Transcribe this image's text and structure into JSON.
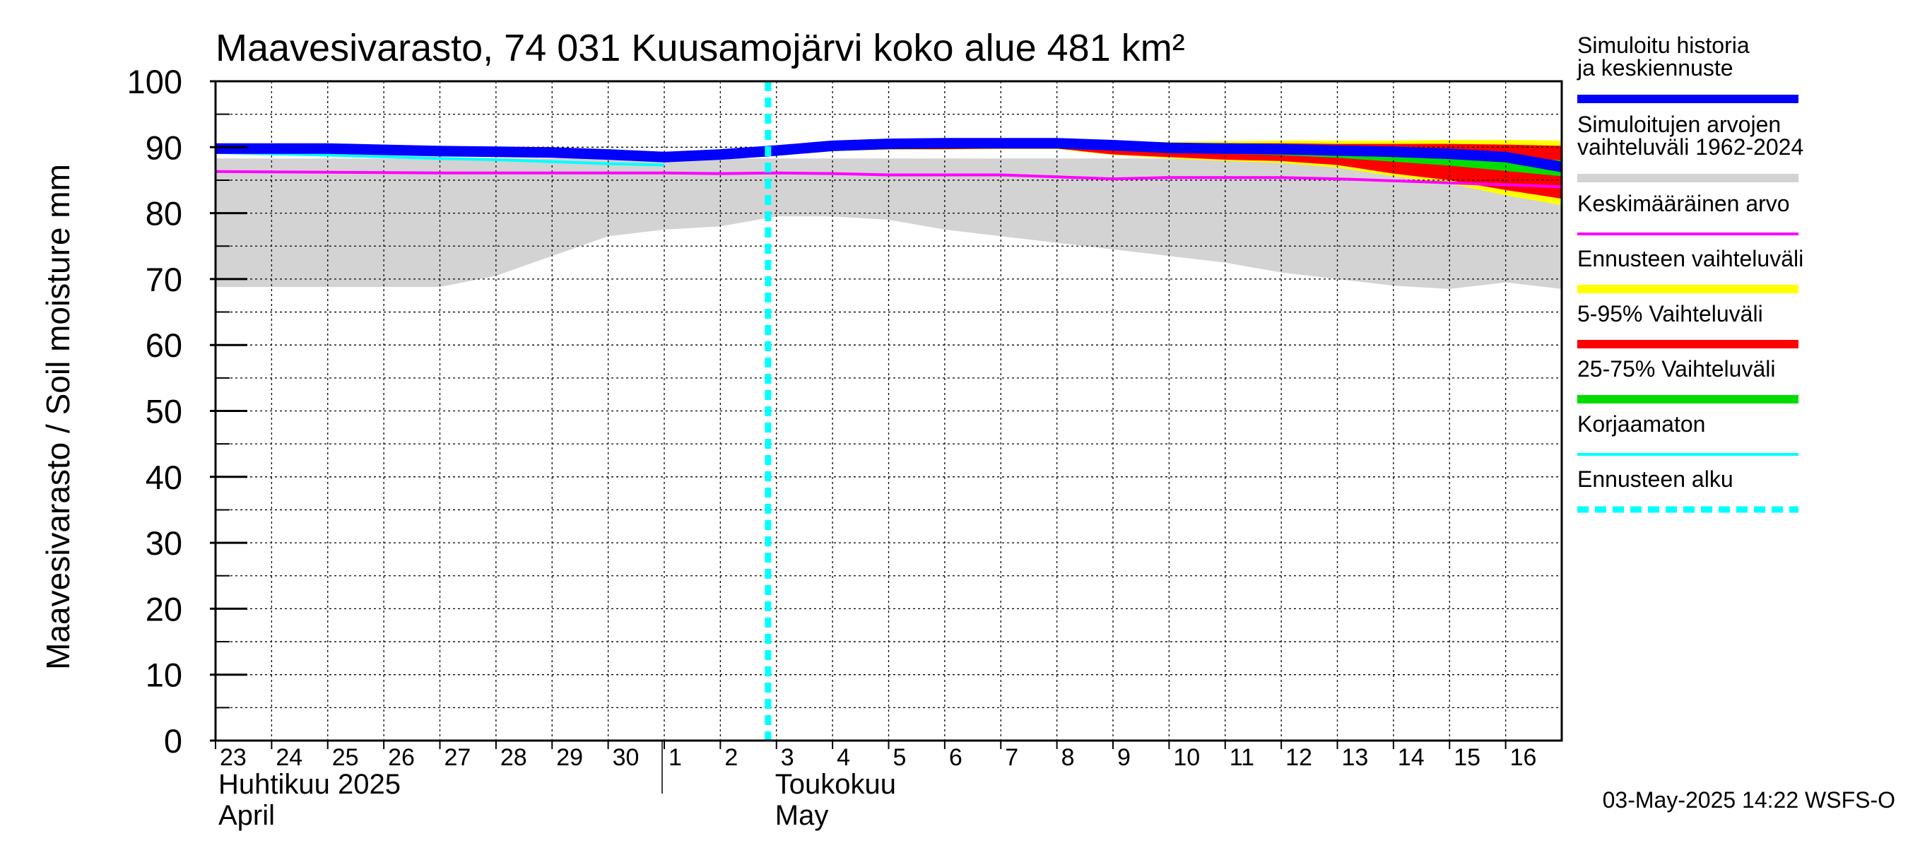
{
  "chart_data": {
    "type": "area",
    "title": "Maavesivarasto, 74 031 Kuusamojärvi koko alue 481 km²",
    "ylabel": "Maavesivarasto / Soil moisture   mm",
    "ylim": [
      0,
      100
    ],
    "yticks": [
      0,
      10,
      20,
      30,
      40,
      50,
      60,
      70,
      80,
      90,
      100
    ],
    "grid": true,
    "legend_position": "right",
    "x_start": "2025-04-23",
    "x_end": "2025-05-17",
    "forecast_start": "2025-05-03",
    "x_day_labels": [
      {
        "date": "2025-04-23",
        "label": "23"
      },
      {
        "date": "2025-04-24",
        "label": "24"
      },
      {
        "date": "2025-04-25",
        "label": "25"
      },
      {
        "date": "2025-04-26",
        "label": "26"
      },
      {
        "date": "2025-04-27",
        "label": "27"
      },
      {
        "date": "2025-04-28",
        "label": "28"
      },
      {
        "date": "2025-04-29",
        "label": "29"
      },
      {
        "date": "2025-04-30",
        "label": "30"
      },
      {
        "date": "2025-05-01",
        "label": "1"
      },
      {
        "date": "2025-05-02",
        "label": "2"
      },
      {
        "date": "2025-05-03",
        "label": "3"
      },
      {
        "date": "2025-05-04",
        "label": "4"
      },
      {
        "date": "2025-05-05",
        "label": "5"
      },
      {
        "date": "2025-05-06",
        "label": "6"
      },
      {
        "date": "2025-05-07",
        "label": "7"
      },
      {
        "date": "2025-05-08",
        "label": "8"
      },
      {
        "date": "2025-05-09",
        "label": "9"
      },
      {
        "date": "2025-05-10",
        "label": "10"
      },
      {
        "date": "2025-05-11",
        "label": "11"
      },
      {
        "date": "2025-05-12",
        "label": "12"
      },
      {
        "date": "2025-05-13",
        "label": "13"
      },
      {
        "date": "2025-05-14",
        "label": "14"
      },
      {
        "date": "2025-05-15",
        "label": "15"
      },
      {
        "date": "2025-05-16",
        "label": "16"
      }
    ],
    "months": [
      {
        "date": "2025-04-23",
        "fi": "Huhtikuu  2025",
        "en": "April"
      },
      {
        "date": "2025-05-01",
        "fi": "Toukokuu",
        "en": "May"
      }
    ],
    "month_separator": "2025-05-01",
    "x": [
      "2025-04-23",
      "2025-04-25",
      "2025-04-27",
      "2025-04-28",
      "2025-04-29",
      "2025-04-30",
      "2025-05-01",
      "2025-05-02",
      "2025-05-03",
      "2025-05-04",
      "2025-05-05",
      "2025-05-06",
      "2025-05-07",
      "2025-05-08",
      "2025-05-09",
      "2025-05-10",
      "2025-05-11",
      "2025-05-12",
      "2025-05-13",
      "2025-05-14",
      "2025-05-15",
      "2025-05-16",
      "2025-05-17"
    ],
    "bands": [
      {
        "name": "Simuloitujen arvojen vaihteluväli 1962-2024",
        "color": "#d3d3d3",
        "upper": [
          88.3,
          88.3,
          88.3,
          88.3,
          88.3,
          88.3,
          88.3,
          88.3,
          88.3,
          88.3,
          88.3,
          88.3,
          88.3,
          88.3,
          88.3,
          88.3,
          88.3,
          88.3,
          88.3,
          88.3,
          88.3,
          88.3,
          88.3
        ],
        "lower": [
          68.8,
          68.8,
          68.8,
          70.5,
          73.5,
          76.5,
          77.5,
          78.0,
          79.5,
          79.5,
          79.0,
          77.5,
          76.5,
          75.5,
          74.5,
          73.5,
          72.5,
          71.0,
          70.0,
          69.0,
          68.5,
          69.5,
          68.5
        ]
      }
    ],
    "forecast_bands": [
      {
        "name": "Ennusteen vaihteluväli",
        "color": "#ffff00",
        "x": [
          "2025-05-03",
          "2025-05-04",
          "2025-05-05",
          "2025-05-06",
          "2025-05-07",
          "2025-05-08",
          "2025-05-09",
          "2025-05-10",
          "2025-05-11",
          "2025-05-12",
          "2025-05-13",
          "2025-05-14",
          "2025-05-15",
          "2025-05-16",
          "2025-05-17"
        ],
        "upper": [
          89.5,
          90.3,
          90.6,
          90.8,
          91.0,
          91.0,
          90.8,
          90.8,
          90.9,
          91.0,
          91.0,
          91.0,
          91.1,
          91.1,
          91.0
        ],
        "lower": [
          89.3,
          89.4,
          89.6,
          89.6,
          89.7,
          89.7,
          88.8,
          88.3,
          87.9,
          87.6,
          86.9,
          85.6,
          84.5,
          82.7,
          81.2
        ]
      },
      {
        "name": "5-95% Vaihteluväli",
        "color": "#ff0000",
        "x": [
          "2025-05-03",
          "2025-05-04",
          "2025-05-05",
          "2025-05-06",
          "2025-05-07",
          "2025-05-08",
          "2025-05-09",
          "2025-05-10",
          "2025-05-11",
          "2025-05-12",
          "2025-05-13",
          "2025-05-14",
          "2025-05-15",
          "2025-05-16",
          "2025-05-17"
        ],
        "upper": [
          89.4,
          90.2,
          90.5,
          90.7,
          90.8,
          90.9,
          90.7,
          90.6,
          90.6,
          90.6,
          90.5,
          90.5,
          90.5,
          90.4,
          90.2
        ],
        "lower": [
          89.4,
          89.5,
          89.7,
          89.7,
          89.8,
          89.8,
          88.9,
          88.5,
          88.1,
          87.9,
          87.3,
          86.0,
          85.0,
          83.5,
          82.2
        ]
      },
      {
        "name": "25-75% Vaihteluväli",
        "color": "#00dd00",
        "x": [
          "2025-05-03",
          "2025-05-04",
          "2025-05-05",
          "2025-05-06",
          "2025-05-07",
          "2025-05-08",
          "2025-05-09",
          "2025-05-10",
          "2025-05-11",
          "2025-05-12",
          "2025-05-13",
          "2025-05-14",
          "2025-05-15",
          "2025-05-16",
          "2025-05-17"
        ],
        "upper": [
          89.4,
          90.1,
          90.4,
          90.6,
          90.7,
          90.8,
          90.3,
          89.9,
          89.8,
          89.7,
          89.5,
          89.3,
          89.0,
          88.6,
          88.0
        ],
        "lower": [
          89.4,
          89.8,
          90.0,
          90.1,
          90.2,
          90.2,
          89.6,
          89.2,
          89.0,
          88.8,
          88.4,
          87.8,
          87.2,
          86.4,
          85.6
        ]
      }
    ],
    "series": [
      {
        "name": "Keskimääräinen arvo",
        "color": "#ff00ff",
        "width": 4,
        "values": [
          86.3,
          86.2,
          86.1,
          86.1,
          86.1,
          86.1,
          86.1,
          86.0,
          86.1,
          86.0,
          85.8,
          85.8,
          85.8,
          85.5,
          85.2,
          85.4,
          85.4,
          85.4,
          85.2,
          84.9,
          84.6,
          84.3,
          84.0
        ]
      },
      {
        "name": "Korjaamaton",
        "color": "#00ffff",
        "width": 4,
        "x": [
          "2025-04-23",
          "2025-04-25",
          "2025-04-27",
          "2025-04-28",
          "2025-04-29",
          "2025-04-30",
          "2025-05-01"
        ],
        "values": [
          89.2,
          88.8,
          88.3,
          88.1,
          87.8,
          87.5,
          87.3
        ]
      },
      {
        "name": "Simuloitu historia ja keskiennuste",
        "color": "#0000ff",
        "width": 15,
        "values": [
          89.8,
          89.8,
          89.4,
          89.3,
          89.2,
          88.9,
          88.5,
          88.9,
          89.5,
          90.2,
          90.5,
          90.6,
          90.6,
          90.6,
          90.3,
          89.9,
          89.8,
          89.7,
          89.5,
          89.3,
          89.0,
          88.5,
          87.0
        ]
      }
    ],
    "legend": [
      {
        "label": "Simuloitu historia ja keskiennuste",
        "color": "#0000ff",
        "style": "thick"
      },
      {
        "label": "Simuloitujen arvojen vaihteluväli 1962-2024",
        "color": "#d3d3d3",
        "style": "thick"
      },
      {
        "label": "Keskimääräinen arvo",
        "color": "#ff00ff",
        "style": "thin"
      },
      {
        "label": "Ennusteen vaihteluväli",
        "color": "#ffff00",
        "style": "thick"
      },
      {
        "label": "5-95% Vaihteluväli",
        "color": "#ff0000",
        "style": "thick"
      },
      {
        "label": "25-75% Vaihteluväli",
        "color": "#00dd00",
        "style": "thick"
      },
      {
        "label": "Korjaamaton",
        "color": "#00ffff",
        "style": "thin"
      },
      {
        "label": "Ennusteen alku",
        "color": "#00ffff",
        "style": "dashed"
      }
    ],
    "timestamp": "03-May-2025 14:22 WSFS-O"
  }
}
